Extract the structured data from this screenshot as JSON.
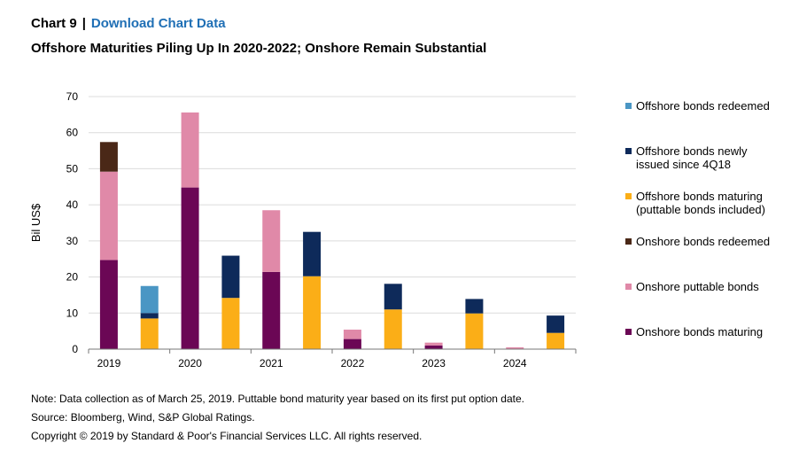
{
  "header": {
    "chart_number": "Chart 9",
    "separator": "|",
    "download_link": "Download Chart Data"
  },
  "subtitle": "Offshore Maturities Piling Up In 2020-2022; Onshore Remain Substantial",
  "chart_data": {
    "type": "bar",
    "stacked": true,
    "ylabel": "Bil US$",
    "ylim": [
      0,
      70
    ],
    "yticks": [
      0,
      10,
      20,
      30,
      40,
      50,
      60,
      70
    ],
    "grid": true,
    "legend_position": "right",
    "year_labels": [
      "2019",
      "2020",
      "2021",
      "2022",
      "2023",
      "2024"
    ],
    "groups": [
      {
        "year": "2019",
        "onshore": {
          "maturing": 24.7,
          "puttable": 24.5,
          "redeemed": 8.2
        },
        "offshore": {
          "maturing": 8.5,
          "newly_issued": 1.5,
          "redeemed": 7.5
        }
      },
      {
        "year": "2020",
        "onshore": {
          "maturing": 44.8,
          "puttable": 20.8,
          "redeemed": 0
        },
        "offshore": {
          "maturing": 14.2,
          "newly_issued": 11.7,
          "redeemed": 0
        }
      },
      {
        "year": "2021",
        "onshore": {
          "maturing": 21.4,
          "puttable": 17.1,
          "redeemed": 0
        },
        "offshore": {
          "maturing": 20.2,
          "newly_issued": 12.3,
          "redeemed": 0
        }
      },
      {
        "year": "2022",
        "onshore": {
          "maturing": 2.8,
          "puttable": 2.6,
          "redeemed": 0
        },
        "offshore": {
          "maturing": 11.0,
          "newly_issued": 7.1,
          "redeemed": 0
        }
      },
      {
        "year": "2023",
        "onshore": {
          "maturing": 1.0,
          "puttable": 0.8,
          "redeemed": 0
        },
        "offshore": {
          "maturing": 9.9,
          "newly_issued": 4.0,
          "redeemed": 0
        }
      },
      {
        "year": "2024",
        "onshore": {
          "maturing": 0.1,
          "puttable": 0.4,
          "redeemed": 0
        },
        "offshore": {
          "maturing": 4.5,
          "newly_issued": 4.8,
          "redeemed": 0
        }
      }
    ],
    "series": [
      {
        "key": "offshore.redeemed",
        "name": "Offshore bonds redeemed",
        "color": "#4a96c4"
      },
      {
        "key": "offshore.newly_issued",
        "name": "Offshore bonds newly issued since 4Q18",
        "color": "#0e2a5a"
      },
      {
        "key": "offshore.maturing",
        "name": "Offshore bonds maturing (puttable bonds included)",
        "color": "#fbae17"
      },
      {
        "key": "onshore.redeemed",
        "name": "Onshore bonds redeemed",
        "color": "#4a2817"
      },
      {
        "key": "onshore.puttable",
        "name": "Onshore puttable bonds",
        "color": "#e089a8"
      },
      {
        "key": "onshore.maturing",
        "name": "Onshore bonds maturing",
        "color": "#6b0755"
      }
    ]
  },
  "legend": {
    "items": [
      {
        "line1": "Offshore bonds redeemed",
        "line2": ""
      },
      {
        "line1": "Offshore bonds newly",
        "line2": "issued since 4Q18"
      },
      {
        "line1": "Offshore bonds maturing",
        "line2": "(puttable bonds included)"
      },
      {
        "line1": "Onshore bonds redeemed",
        "line2": ""
      },
      {
        "line1": "Onshore puttable bonds",
        "line2": ""
      },
      {
        "line1": "Onshore bonds maturing",
        "line2": ""
      }
    ]
  },
  "notes": {
    "note": "Note: Data collection as of March 25, 2019. Puttable bond maturity year based on its first put option date.",
    "source": "Source: Bloomberg, Wind, S&P Global Ratings.",
    "copyright": "Copyright © 2019 by Standard & Poor's Financial Services LLC. All rights reserved."
  }
}
